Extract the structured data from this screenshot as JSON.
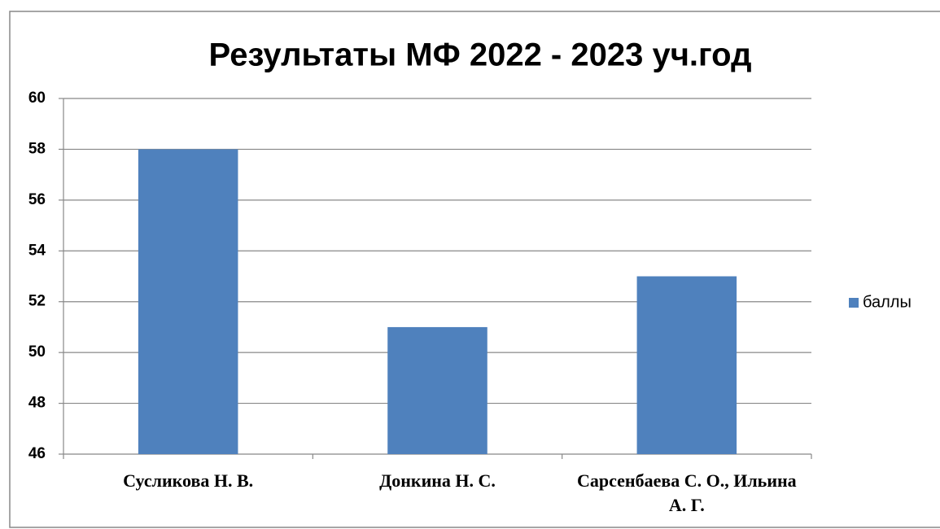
{
  "chart_data": {
    "type": "bar",
    "title": "Результаты МФ 2022 - 2023 уч.год",
    "categories": [
      "Сусликова Н. В.",
      "Донкина Н. С.",
      "Сарсенбаева С. О., Ильина А. Г."
    ],
    "series": [
      {
        "name": "баллы",
        "color": "#4f81bd",
        "values": [
          58,
          51,
          53
        ]
      }
    ],
    "ylim": [
      46,
      60
    ],
    "yticks": [
      46,
      48,
      50,
      52,
      54,
      56,
      58,
      60
    ],
    "grid": true,
    "legend": "right"
  }
}
